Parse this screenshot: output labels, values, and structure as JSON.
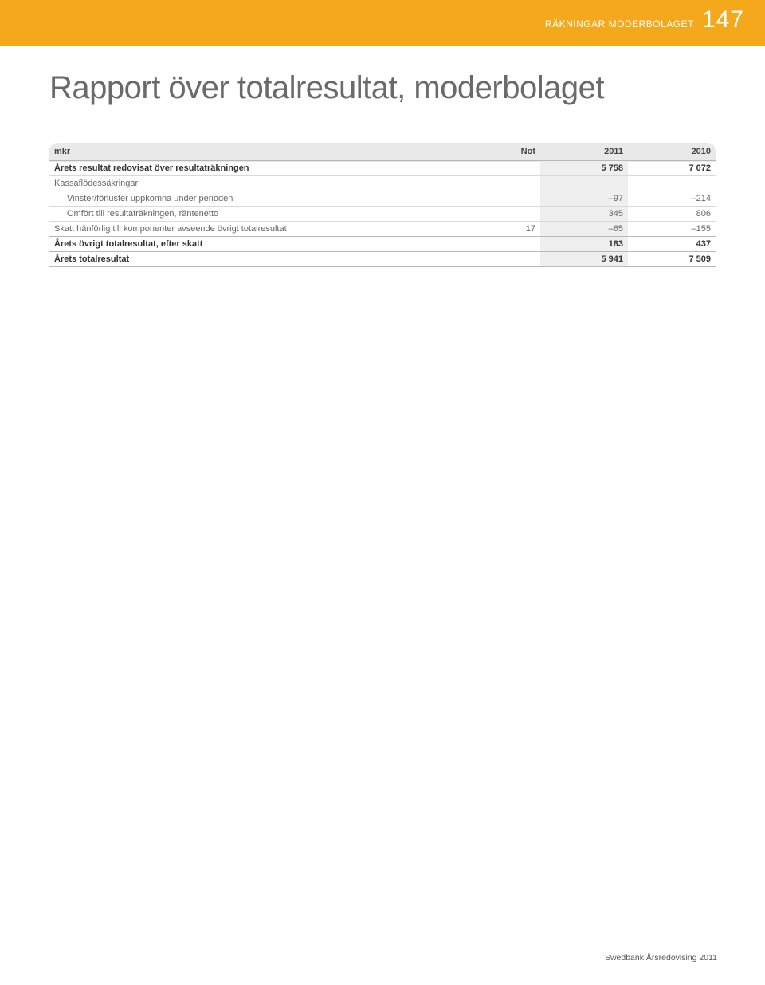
{
  "header": {
    "section_label": "RÄKNINGAR MODERBOLAGET",
    "page_number": "147",
    "band_color": "#f4a81c"
  },
  "title": "Rapport över totalresultat, moderbolaget",
  "table": {
    "columns": {
      "label": "mkr",
      "note": "Not",
      "year1": "2011",
      "year2": "2010"
    },
    "rows": [
      {
        "label": "Årets resultat redovisat över resultaträkningen",
        "note": "",
        "y1": "5 758",
        "y2": "7 072",
        "bold": true,
        "indent": 0
      },
      {
        "label": "Kassaflödessäkringar",
        "note": "",
        "y1": "",
        "y2": "",
        "bold": false,
        "indent": 0
      },
      {
        "label": "Vinster/förluster uppkomna under perioden",
        "note": "",
        "y1": "–97",
        "y2": "–214",
        "bold": false,
        "indent": 1
      },
      {
        "label": "Omfört till resultaträkningen, räntenetto",
        "note": "",
        "y1": "345",
        "y2": "806",
        "bold": false,
        "indent": 1
      },
      {
        "label": "Skatt hänförlig till komponenter avseende övrigt totalresultat",
        "note": "17",
        "y1": "–65",
        "y2": "–155",
        "bold": false,
        "indent": 0,
        "section_end": true
      },
      {
        "label": "Årets övrigt totalresultat, efter skatt",
        "note": "",
        "y1": "183",
        "y2": "437",
        "bold": true,
        "indent": 0,
        "section_end": true
      },
      {
        "label": "Årets totalresultat",
        "note": "",
        "y1": "5 941",
        "y2": "7 509",
        "bold": true,
        "indent": 0,
        "section_end": true
      }
    ],
    "highlight_column_bg": "#efefef",
    "header_bg": "#e9e9e9",
    "border_color": "#d9d9d9",
    "border_strong": "#b7b7b7"
  },
  "footer": "Swedbank Årsredovising 2011"
}
